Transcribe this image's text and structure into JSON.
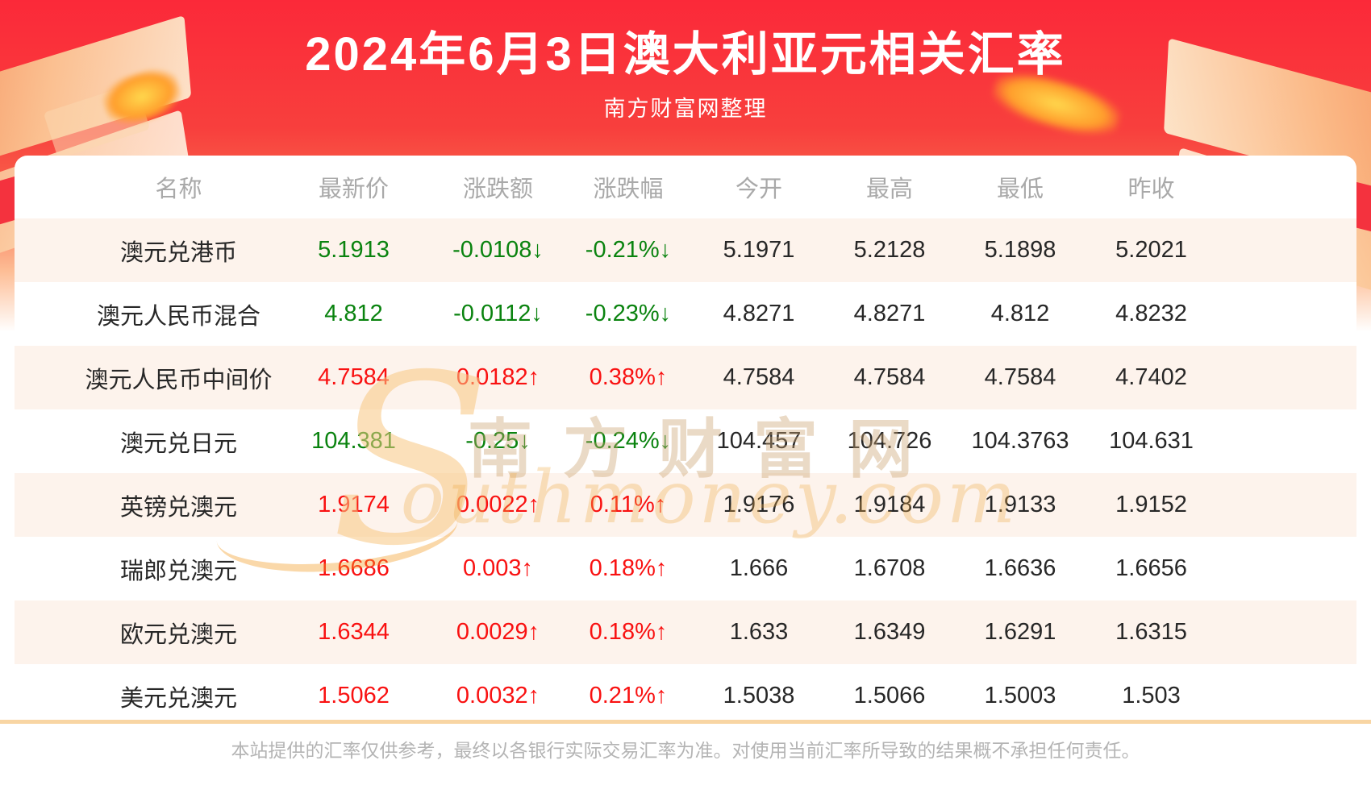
{
  "banner": {
    "title": "2024年6月3日澳大利亚元相关汇率",
    "subtitle": "南方财富网整理"
  },
  "table": {
    "headers": [
      "名称",
      "最新价",
      "涨跌额",
      "涨跌幅",
      "今开",
      "最高",
      "最低",
      "昨收"
    ],
    "rows": [
      {
        "name": "澳元兑港币",
        "latest": "5.1913",
        "change": "-0.0108↓",
        "change_pct": "-0.21%↓",
        "open": "5.1971",
        "high": "5.2128",
        "low": "5.1898",
        "prev_close": "5.2021",
        "trend": "down"
      },
      {
        "name": "澳元人民币混合",
        "latest": "4.812",
        "change": "-0.0112↓",
        "change_pct": "-0.23%↓",
        "open": "4.8271",
        "high": "4.8271",
        "low": "4.812",
        "prev_close": "4.8232",
        "trend": "down"
      },
      {
        "name": "澳元人民币中间价",
        "latest": "4.7584",
        "change": "0.0182↑",
        "change_pct": "0.38%↑",
        "open": "4.7584",
        "high": "4.7584",
        "low": "4.7584",
        "prev_close": "4.7402",
        "trend": "up"
      },
      {
        "name": "澳元兑日元",
        "latest": "104.381",
        "change": "-0.25↓",
        "change_pct": "-0.24%↓",
        "open": "104.457",
        "high": "104.726",
        "low": "104.3763",
        "prev_close": "104.631",
        "trend": "down"
      },
      {
        "name": "英镑兑澳元",
        "latest": "1.9174",
        "change": "0.0022↑",
        "change_pct": "0.11%↑",
        "open": "1.9176",
        "high": "1.9184",
        "low": "1.9133",
        "prev_close": "1.9152",
        "trend": "up"
      },
      {
        "name": "瑞郎兑澳元",
        "latest": "1.6686",
        "change": "0.003↑",
        "change_pct": "0.18%↑",
        "open": "1.666",
        "high": "1.6708",
        "low": "1.6636",
        "prev_close": "1.6656",
        "trend": "up"
      },
      {
        "name": "欧元兑澳元",
        "latest": "1.6344",
        "change": "0.0029↑",
        "change_pct": "0.18%↑",
        "open": "1.633",
        "high": "1.6349",
        "low": "1.6291",
        "prev_close": "1.6315",
        "trend": "up"
      },
      {
        "name": "美元兑澳元",
        "latest": "1.5062",
        "change": "0.0032↑",
        "change_pct": "0.21%↑",
        "open": "1.5038",
        "high": "1.5066",
        "low": "1.5003",
        "prev_close": "1.503",
        "trend": "up"
      }
    ]
  },
  "watermark": {
    "initial": "S",
    "cjk": "南方财富网",
    "latin": "outhmoney.com"
  },
  "footer": {
    "disclaimer": "本站提供的汇率仅供参考，最终以各银行实际交易汇率为准。对使用当前汇率所导致的结果概不承担任何责任。"
  },
  "colors": {
    "up_red": "#f91111",
    "down_green": "#0a830f",
    "row_alt_bg": "#fdf3ec",
    "divider": "#f8d5a3",
    "banner_red": "#fb2939"
  }
}
